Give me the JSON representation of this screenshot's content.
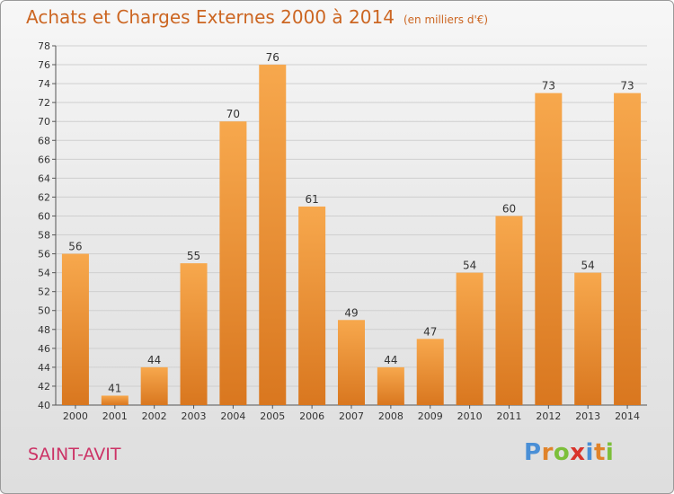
{
  "header": {
    "title": "Achats et Charges Externes 2000 à 2014",
    "subtitle": "(en milliers d'€)"
  },
  "footer": {
    "place": "SAINT-AVIT",
    "logo": [
      "P",
      "r",
      "o",
      "x",
      "i",
      "t",
      "i"
    ]
  },
  "colors": {
    "title": "#cc6622",
    "place": "#cc3366",
    "bar_light": "#f7a84d",
    "bar_dark": "#d9771f",
    "logo": [
      "#4a8fd6",
      "#e0832a",
      "#7cbf3a",
      "#d9342b",
      "#4a8fd6",
      "#e0832a",
      "#7cbf3a"
    ]
  },
  "chart_data": {
    "type": "bar",
    "title": "Achats et Charges Externes 2000 à 2014",
    "subtitle": "(en milliers d'€)",
    "xlabel": "",
    "ylabel": "",
    "categories": [
      "2000",
      "2001",
      "2002",
      "2003",
      "2004",
      "2005",
      "2006",
      "2007",
      "2008",
      "2009",
      "2010",
      "2011",
      "2012",
      "2013",
      "2014"
    ],
    "values": [
      56,
      41,
      44,
      55,
      70,
      76,
      61,
      49,
      44,
      47,
      54,
      60,
      73,
      54,
      73
    ],
    "ylim": [
      40,
      78
    ],
    "yticks": [
      40,
      42,
      44,
      46,
      48,
      50,
      52,
      54,
      56,
      58,
      60,
      62,
      64,
      66,
      68,
      70,
      72,
      74,
      76,
      78
    ],
    "grid": true,
    "legend": "none"
  }
}
